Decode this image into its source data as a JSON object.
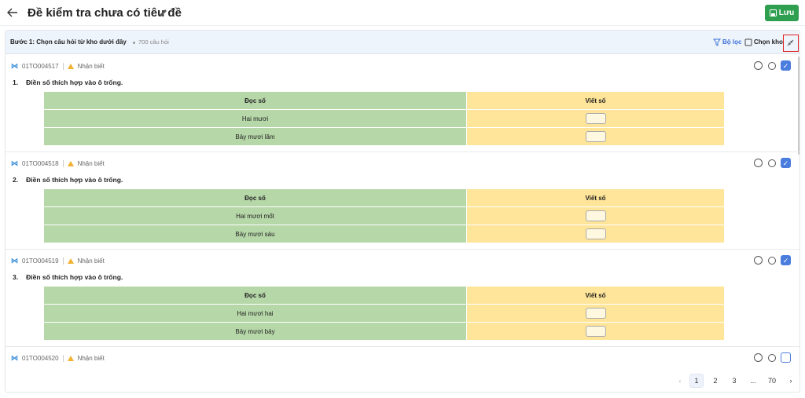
{
  "header": {
    "title": "Đề kiểm tra chưa có tiêu đề",
    "save_button": "Lưu"
  },
  "panel": {
    "step_title": "Bước 1: Chọn câu hỏi từ kho dưới đây",
    "count": "700 câu hỏi",
    "filter": "Bộ lọc",
    "choose_bank": "Chọn kho"
  },
  "questions": [
    {
      "code": "01TO004517",
      "level": "Nhận biết",
      "number": "1.",
      "text": "Điền số thích hợp vào ô trống.",
      "selected": true,
      "table": {
        "headers": [
          "Đọc số",
          "Viết số"
        ],
        "rows": [
          "Hai mươi",
          "Bảy mươi lăm"
        ]
      }
    },
    {
      "code": "01TO004518",
      "level": "Nhận biết",
      "number": "2.",
      "text": "Điền số thích hợp vào ô trống.",
      "selected": true,
      "table": {
        "headers": [
          "Đọc số",
          "Viết số"
        ],
        "rows": [
          "Hai mươi mốt",
          "Bảy mươi sáu"
        ]
      }
    },
    {
      "code": "01TO004519",
      "level": "Nhận biết",
      "number": "3.",
      "text": "Điền số thích hợp vào ô trống.",
      "selected": true,
      "table": {
        "headers": [
          "Đọc số",
          "Viết số"
        ],
        "rows": [
          "Hai mươi hai",
          "Bảy mươi bảy"
        ]
      }
    },
    {
      "code": "01TO004520",
      "level": "Nhận biết",
      "selected": false
    }
  ],
  "pagination": {
    "pages": [
      "1",
      "2",
      "3",
      "...",
      "70"
    ],
    "current": 0
  }
}
